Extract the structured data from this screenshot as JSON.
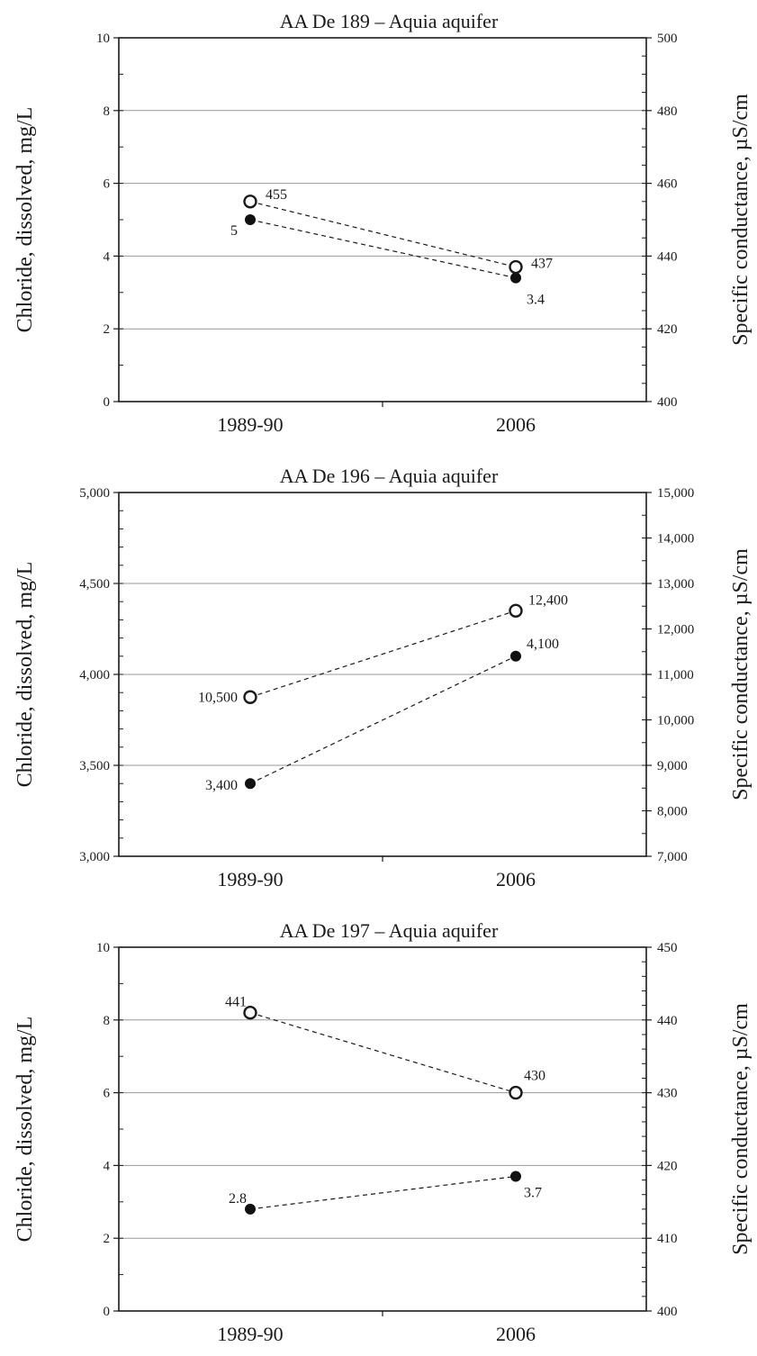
{
  "colors": {
    "axis": "#1a1a1a",
    "grid": "#9a9a9a",
    "chloride_marker": "#111111",
    "conductance_marker": "#ffffff"
  },
  "chart_data": [
    {
      "type": "line",
      "title": "AA De 189 –  Aquia aquifer",
      "categories": [
        "1989-90",
        "2006"
      ],
      "ylabel": "Chloride, dissolved, mg/L",
      "ylabel_right": "Specific conductance, µS/cm",
      "ylim": [
        0,
        10
      ],
      "ylim_right": [
        400,
        500
      ],
      "yticks": [
        0,
        2,
        4,
        6,
        8,
        10
      ],
      "yticks_labels": [
        "0",
        "2",
        "4",
        "6",
        "8",
        "10"
      ],
      "yticks_right": [
        400,
        420,
        440,
        460,
        480,
        500
      ],
      "yticks_right_labels": [
        "400",
        "420",
        "440",
        "460",
        "480",
        "500"
      ],
      "yminor_step": 1,
      "yminor_step_right": 5,
      "grid": true,
      "series": [
        {
          "axis": "left",
          "marker": "filled",
          "values": [
            5.0,
            3.4
          ],
          "labels": [
            "5",
            "3.4"
          ]
        },
        {
          "axis": "right",
          "marker": "open",
          "values": [
            455,
            437
          ],
          "labels": [
            "455",
            "437"
          ]
        }
      ]
    },
    {
      "type": "line",
      "title": "AA De 196 – Aquia aquifer",
      "categories": [
        "1989-90",
        "2006"
      ],
      "ylabel": "Chloride, dissolved, mg/L",
      "ylabel_right": "Specific conductance, µS/cm",
      "ylim": [
        3000,
        5000
      ],
      "ylim_right": [
        7000,
        15000
      ],
      "yticks": [
        3000,
        3500,
        4000,
        4500,
        5000
      ],
      "yticks_labels": [
        "3,000",
        "3,500",
        "4,000",
        "4,500",
        "5,000"
      ],
      "yticks_right": [
        7000,
        8000,
        9000,
        10000,
        11000,
        12000,
        13000,
        14000,
        15000
      ],
      "yticks_right_labels": [
        "7,000",
        "8,000",
        "9,000",
        "10,000",
        "11,000",
        "12,000",
        "13,000",
        "14,000",
        "15,000"
      ],
      "yminor_step": 100,
      "yminor_step_right": 500,
      "grid": true,
      "series": [
        {
          "axis": "left",
          "marker": "filled",
          "values": [
            3400,
            4100
          ],
          "labels": [
            "3,400",
            "4,100"
          ]
        },
        {
          "axis": "right",
          "marker": "open",
          "values": [
            10500,
            12400
          ],
          "labels": [
            "10,500",
            "12,400"
          ]
        }
      ]
    },
    {
      "type": "line",
      "title": "AA De 197 – Aquia aquifer",
      "categories": [
        "1989-90",
        "2006"
      ],
      "ylabel": "Chloride, dissolved, mg/L",
      "ylabel_right": "Specific conductance, µS/cm",
      "ylim": [
        0,
        10
      ],
      "ylim_right": [
        400,
        450
      ],
      "yticks": [
        0,
        2,
        4,
        6,
        8,
        10
      ],
      "yticks_labels": [
        "0",
        "2",
        "4",
        "6",
        "8",
        "10"
      ],
      "yticks_right": [
        400,
        410,
        420,
        430,
        440,
        450
      ],
      "yticks_right_labels": [
        "400",
        "410",
        "420",
        "430",
        "440",
        "450"
      ],
      "yminor_step": 1,
      "yminor_step_right": 2,
      "grid": true,
      "series": [
        {
          "axis": "left",
          "marker": "filled",
          "values": [
            2.8,
            3.7
          ],
          "labels": [
            "2.8",
            "3.7"
          ]
        },
        {
          "axis": "right",
          "marker": "open",
          "values": [
            441,
            430
          ],
          "labels": [
            "441",
            "430"
          ]
        }
      ]
    }
  ]
}
